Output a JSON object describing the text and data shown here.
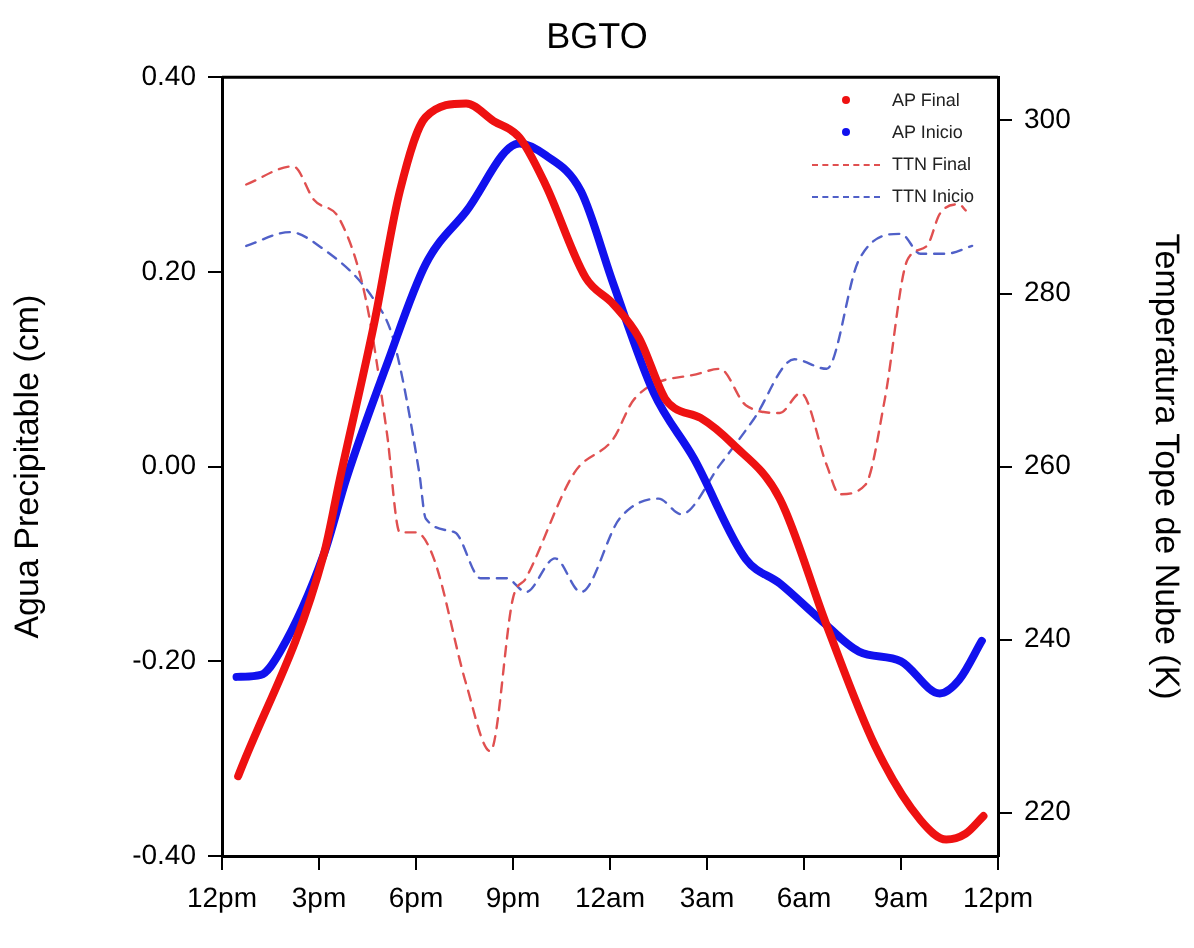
{
  "chart_data": {
    "type": "line",
    "title": "BGTO",
    "ylabel": "Agua Precipitable (cm)",
    "y2label": "Temperatura Tope de Nube (K)",
    "xlim": [
      "--01-01T12:00",
      "--01-02T12:00"
    ],
    "xticks": [
      {
        "value": "--01-01T12:00",
        "label": "12pm"
      },
      {
        "value": "--01-01T15:00",
        "label": "3pm"
      },
      {
        "value": "--01-01T18:00",
        "label": "6pm"
      },
      {
        "value": "--01-01T21:00",
        "label": "9pm"
      },
      {
        "value": "--01-02T00:00",
        "label": "12am"
      },
      {
        "value": "--01-02T03:00",
        "label": "3am"
      },
      {
        "value": "--01-02T06:00",
        "label": "6am"
      },
      {
        "value": "--01-02T09:00",
        "label": "9am"
      },
      {
        "value": "--01-02T12:00",
        "label": "12pm"
      }
    ],
    "ylim": [
      -0.4,
      0.4
    ],
    "yticks": [
      {
        "value": -0.4,
        "label": "-0.40"
      },
      {
        "value": -0.2,
        "label": "-0.20"
      },
      {
        "value": 0,
        "label": "0.00"
      },
      {
        "value": 0.2,
        "label": "0.20"
      },
      {
        "value": 0.4,
        "label": "0.40"
      }
    ],
    "y2lim": [
      215,
      305
    ],
    "y2ticks": [
      220,
      240,
      260,
      280,
      300
    ],
    "grid": false,
    "legend": "top right",
    "marker": "none",
    "series": [
      {
        "name": "AP Final",
        "color": "#ee1111",
        "line_style": "solid",
        "x": [
          "--01-01T12:30",
          "--01-01T15:09",
          "--01-01T15:39",
          "--01-01T16:42",
          "--01-01T17:30",
          "--01-01T18:18",
          "--01-01T19:33",
          "--01-01T20:24",
          "--01-01T21:12",
          "--01-01T22:00",
          "--01-01T23:15",
          "--01-02T00:06",
          "--01-02T00:54",
          "--01-02T01:42",
          "--01-02T02:00",
          "--01-02T02:48",
          "--01-02T03:48",
          "--01-02T05:15",
          "--01-02T06:42",
          "--01-02T08:12",
          "--01-02T09:36",
          "--01-02T10:24",
          "--01-02T11:00",
          "--01-02T11:33"
        ],
        "values": [
          -0.318,
          -0.09,
          -0.012,
          0.146,
          0.283,
          0.359,
          0.373,
          0.355,
          0.338,
          0.29,
          0.194,
          0.167,
          0.132,
          0.07,
          0.06,
          0.05,
          0.023,
          -0.033,
          -0.163,
          -0.287,
          -0.363,
          -0.383,
          -0.377,
          -0.359
        ]
      },
      {
        "name": "AP Inicio",
        "color": "#1111ee",
        "line_style": "solid",
        "x": [
          "--01-01T12:27",
          "--01-01T13:12",
          "--01-01T13:48",
          "--01-01T15:09",
          "--01-01T15:51",
          "--01-01T17:06",
          "--01-01T18:18",
          "--01-01T19:33",
          "--01-01T21:12",
          "--01-01T22:00",
          "--01-01T23:06",
          "--01-02T00:06",
          "--01-02T01:21",
          "--01-02T02:36",
          "--01-02T04:12",
          "--01-02T05:15",
          "--01-02T06:30",
          "--01-02T07:42",
          "--01-02T09:00",
          "--01-02T10:12",
          "--01-02T10:48",
          "--01-02T11:30"
        ],
        "values": [
          -0.216,
          -0.214,
          -0.19,
          -0.09,
          -0.012,
          0.105,
          0.208,
          0.262,
          0.332,
          0.32,
          0.283,
          0.188,
          0.076,
          0.008,
          -0.095,
          -0.12,
          -0.157,
          -0.19,
          -0.2,
          -0.233,
          -0.219,
          -0.179
        ]
      },
      {
        "name": "TTN Final",
        "color": "#e05050",
        "line_style": "dashed",
        "axis": "y2",
        "x": [
          "--01-01T12:45",
          "--01-01T14:12",
          "--01-01T14:51",
          "--01-01T15:39",
          "--01-01T16:27",
          "--01-01T17:06",
          "--01-01T17:30",
          "--01-01T18:00",
          "--01-01T18:33",
          "--01-01T19:33",
          "--01-01T20:18",
          "--01-01T21:00",
          "--01-01T21:24",
          "--01-01T22:54",
          "--01-02T00:06",
          "--01-02T00:45",
          "--01-02T02:48",
          "--01-02T03:24",
          "--01-02T04:12",
          "--01-02T05:15",
          "--01-02T05:54",
          "--01-02T06:42",
          "--01-02T07:06",
          "--01-02T07:54",
          "--01-02T08:30",
          "--01-02T09:12",
          "--01-02T09:48",
          "--01-02T10:12",
          "--01-02T10:48",
          "--01-02T11:00"
        ],
        "values": [
          292.6,
          294.7,
          290.8,
          288.5,
          279.3,
          263.9,
          252.4,
          252.4,
          249.4,
          234.9,
          227.1,
          244.8,
          247.1,
          259.3,
          263.2,
          267.8,
          270.8,
          271.3,
          267.1,
          266.2,
          268.5,
          260.2,
          256.8,
          257.9,
          267.8,
          283.9,
          285.5,
          289.2,
          290.3,
          289.6
        ]
      },
      {
        "name": "TTN Inicio",
        "color": "#5060c8",
        "line_style": "dashed",
        "axis": "y2",
        "x": [
          "--01-01T12:45",
          "--01-01T14:06",
          "--01-01T15:00",
          "--01-01T16:42",
          "--01-01T17:18",
          "--01-01T18:06",
          "--01-01T18:18",
          "--01-01T19:12",
          "--01-01T20:00",
          "--01-01T20:48",
          "--01-01T21:24",
          "--01-01T22:18",
          "--01-01T23:06",
          "--01-02T00:18",
          "--01-02T01:30",
          "--01-02T02:12",
          "--01-02T03:24",
          "--01-02T04:27",
          "--01-02T05:42",
          "--01-02T06:42",
          "--01-02T07:42",
          "--01-02T09:00",
          "--01-02T09:36",
          "--01-02T10:24",
          "--01-02T11:12"
        ],
        "values": [
          285.5,
          287.1,
          285.5,
          279.3,
          274.7,
          259.3,
          254.0,
          252.4,
          247.1,
          247.1,
          245.5,
          249.4,
          245.5,
          254.0,
          256.3,
          254.5,
          260.2,
          265.5,
          272.4,
          271.3,
          283.9,
          286.9,
          284.6,
          284.6,
          285.5
        ]
      }
    ]
  }
}
